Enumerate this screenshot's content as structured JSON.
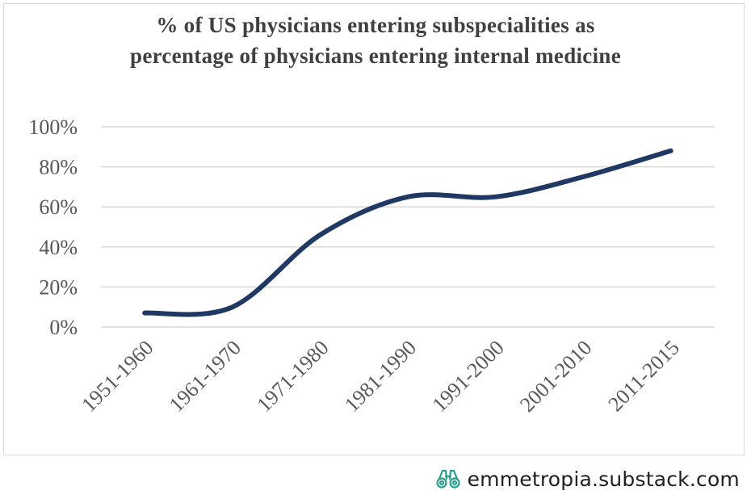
{
  "chart_data": {
    "type": "line",
    "title_lines": [
      "% of US physicians entering subspecialities as",
      "percentage of physicians entering internal medicine"
    ],
    "categories": [
      "1951-1960",
      "1961-1970",
      "1971-1980",
      "1981-1990",
      "1991-2000",
      "2001-2010",
      "2011-2015"
    ],
    "series": [
      {
        "values": [
          7,
          10,
          46,
          65,
          65,
          75,
          88
        ]
      }
    ],
    "y_ticks": [
      "0%",
      "20%",
      "40%",
      "60%",
      "80%",
      "100%"
    ],
    "ylim": [
      0,
      100
    ],
    "grid": true,
    "line_color": "#1f3864",
    "grid_color": "#d9d9d9",
    "tick_label_color": "#595959"
  },
  "footer": {
    "icon": "binoculars-icon",
    "icon_color": "#2a9d8f",
    "text": "emmetropia.substack.com"
  }
}
